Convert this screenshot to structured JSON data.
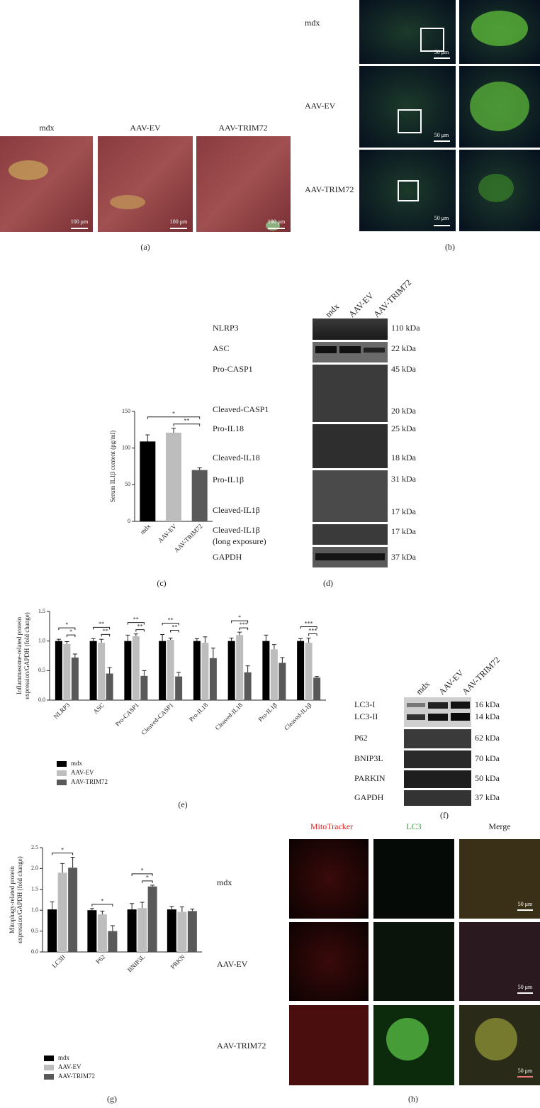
{
  "panels": {
    "a": {
      "label": "(a)",
      "titles": [
        "mdx",
        "AAV-EV",
        "AAV-TRIM72"
      ],
      "scale": "100 μm"
    },
    "b": {
      "label": "(b)",
      "rows": [
        "mdx",
        "AAV-EV",
        "AAV-TRIM72"
      ],
      "scale": "50 μm"
    },
    "c": {
      "label": "(c)"
    },
    "d": {
      "label": "(d)",
      "lanes": [
        "mdx",
        "AAV-EV",
        "AAV-TRIM72"
      ],
      "rows": [
        "NLRP3",
        "ASC",
        "Pro-CASP1",
        "Cleaved-CASP1",
        "Pro-IL18",
        "Cleaved-IL18",
        "Pro-IL1β",
        "Cleaved-IL1β",
        "Cleaved-IL1β",
        "(long exposure)",
        "GAPDH"
      ],
      "kda": [
        "110 kDa",
        "22 kDa",
        "45 kDa",
        "20 kDa",
        "25 kDa",
        "18 kDa",
        "31 kDa",
        "17 kDa",
        "17 kDa",
        "37 kDa"
      ]
    },
    "e": {
      "label": "(e)"
    },
    "f": {
      "label": "(f)",
      "lanes": [
        "mdx",
        "AAV-EV",
        "AAV-TRIM72"
      ],
      "rows": [
        "LC3-I",
        "LC3-II",
        "P62",
        "BNIP3L",
        "PARKIN",
        "GAPDH"
      ],
      "kda": [
        "16 kDa",
        "14 kDa",
        "62 kDa",
        "70 kDa",
        "50 kDa",
        "37 kDa"
      ]
    },
    "g": {
      "label": "(g)"
    },
    "h": {
      "label": "(h)",
      "columns": [
        "MitoTracker",
        "LC3",
        "Merge"
      ],
      "rows": [
        "mdx",
        "AAV-EV",
        "AAV-TRIM72"
      ],
      "scale": "50 μm"
    }
  },
  "chart_data": [
    {
      "type": "bar",
      "y_label": [
        "Serum IL1β content (pg/ml)"
      ],
      "categories": [
        "mdx",
        "AAV-EV",
        "AAV-TRIM72"
      ],
      "values": [
        109,
        121,
        70
      ],
      "errors": [
        9,
        6,
        3
      ],
      "colors": [
        "#000000",
        "#bdbdbd",
        "#595959"
      ],
      "ylim": [
        0,
        150
      ],
      "yticks": [
        0,
        50,
        100,
        150
      ],
      "significance": [
        {
          "pair": [
            "mdx",
            "AAV-TRIM72"
          ],
          "label": "*"
        },
        {
          "pair": [
            "AAV-EV",
            "AAV-TRIM72"
          ],
          "label": "**"
        }
      ]
    },
    {
      "type": "bar",
      "y_label": [
        "Inflammasome-related protein",
        "expression/GAPDH (fold change)"
      ],
      "categories": [
        "NLRP3",
        "ASC",
        "Pro-CASP1",
        "Cleaved-CASP1",
        "Pro-IL18",
        "Cleaved-IL18",
        "Pro-IL1β",
        "Cleaved-IL1β"
      ],
      "series": [
        {
          "name": "mdx",
          "color": "#000000",
          "values": [
            1.0,
            1.0,
            1.0,
            1.0,
            1.0,
            1.0,
            1.0,
            1.0
          ],
          "errors": [
            0.03,
            0.04,
            0.1,
            0.11,
            0.04,
            0.05,
            0.1,
            0.04
          ]
        },
        {
          "name": "AAV-EV",
          "color": "#bdbdbd",
          "values": [
            0.95,
            0.97,
            1.08,
            1.02,
            0.97,
            1.1,
            0.86,
            0.97
          ],
          "errors": [
            0.04,
            0.06,
            0.04,
            0.03,
            0.1,
            0.05,
            0.08,
            0.08
          ]
        },
        {
          "name": "AAV-TRIM72",
          "color": "#595959",
          "values": [
            0.72,
            0.45,
            0.41,
            0.4,
            0.71,
            0.47,
            0.63,
            0.38
          ],
          "errors": [
            0.06,
            0.1,
            0.09,
            0.07,
            0.17,
            0.11,
            0.09,
            0.02
          ]
        }
      ],
      "ylim": [
        0,
        1.5
      ],
      "yticks": [
        {
          "value": 0,
          "label": "0.0"
        },
        {
          "value": 0.5,
          "label": "0.5"
        },
        {
          "value": 1,
          "label": "1.0"
        },
        {
          "value": 1.5,
          "label": "1.5"
        }
      ],
      "legend": "bottom-left",
      "significance": [
        {
          "category": "NLRP3",
          "pair": [
            "mdx",
            "AAV-TRIM72"
          ],
          "label": "*"
        },
        {
          "category": "NLRP3",
          "pair": [
            "AAV-EV",
            "AAV-TRIM72"
          ],
          "label": "*"
        },
        {
          "category": "ASC",
          "pair": [
            "mdx",
            "AAV-TRIM72"
          ],
          "label": "**"
        },
        {
          "category": "ASC",
          "pair": [
            "AAV-EV",
            "AAV-TRIM72"
          ],
          "label": "**"
        },
        {
          "category": "Pro-CASP1",
          "pair": [
            "mdx",
            "AAV-TRIM72"
          ],
          "label": "**"
        },
        {
          "category": "Pro-CASP1",
          "pair": [
            "AAV-EV",
            "AAV-TRIM72"
          ],
          "label": "**"
        },
        {
          "category": "Cleaved-CASP1",
          "pair": [
            "mdx",
            "AAV-TRIM72"
          ],
          "label": "**"
        },
        {
          "category": "Cleaved-CASP1",
          "pair": [
            "AAV-EV",
            "AAV-TRIM72"
          ],
          "label": "**"
        },
        {
          "category": "Cleaved-IL18",
          "pair": [
            "mdx",
            "AAV-TRIM72"
          ],
          "label": "*"
        },
        {
          "category": "Cleaved-IL18",
          "pair": [
            "AAV-EV",
            "AAV-TRIM72"
          ],
          "label": "***"
        },
        {
          "category": "Cleaved-IL1β",
          "pair": [
            "mdx",
            "AAV-TRIM72"
          ],
          "label": "***"
        },
        {
          "category": "Cleaved-IL1β",
          "pair": [
            "AAV-EV",
            "AAV-TRIM72"
          ],
          "label": "***"
        }
      ]
    },
    {
      "type": "bar",
      "y_label": [
        "Mitophagy-related protein",
        "expression/GAPDH (fold change)"
      ],
      "categories": [
        "LC3II",
        "P62",
        "BNIP3L",
        "PRKN"
      ],
      "series": [
        {
          "name": "mdx",
          "color": "#000000",
          "values": [
            1.02,
            1.0,
            1.02,
            1.02
          ],
          "errors": [
            0.18,
            0.04,
            0.14,
            0.07
          ]
        },
        {
          "name": "AAV-EV",
          "color": "#bdbdbd",
          "values": [
            1.9,
            0.9,
            1.05,
            0.96
          ],
          "errors": [
            0.22,
            0.08,
            0.14,
            0.12
          ]
        },
        {
          "name": "AAV-TRIM72",
          "color": "#595959",
          "values": [
            2.02,
            0.5,
            1.57,
            0.98
          ],
          "errors": [
            0.25,
            0.13,
            0.03,
            0.05
          ]
        }
      ],
      "ylim": [
        0,
        2.5
      ],
      "yticks": [
        {
          "value": 0,
          "label": "0.0"
        },
        {
          "value": 0.5,
          "label": "0.5"
        },
        {
          "value": 1,
          "label": "1.0"
        },
        {
          "value": 1.5,
          "label": "1.5"
        },
        {
          "value": 2,
          "label": "2.0"
        },
        {
          "value": 2.5,
          "label": "2.5"
        }
      ],
      "legend": "bottom-left",
      "significance": [
        {
          "category": "LC3II",
          "pair": [
            "mdx",
            "AAV-TRIM72"
          ],
          "label": "*"
        },
        {
          "category": "P62",
          "pair": [
            "mdx",
            "AAV-TRIM72"
          ],
          "label": "*"
        },
        {
          "category": "BNIP3L",
          "pair": [
            "mdx",
            "AAV-TRIM72"
          ],
          "label": "*"
        },
        {
          "category": "BNIP3L",
          "pair": [
            "AAV-EV",
            "AAV-TRIM72"
          ],
          "label": "*"
        }
      ]
    }
  ]
}
